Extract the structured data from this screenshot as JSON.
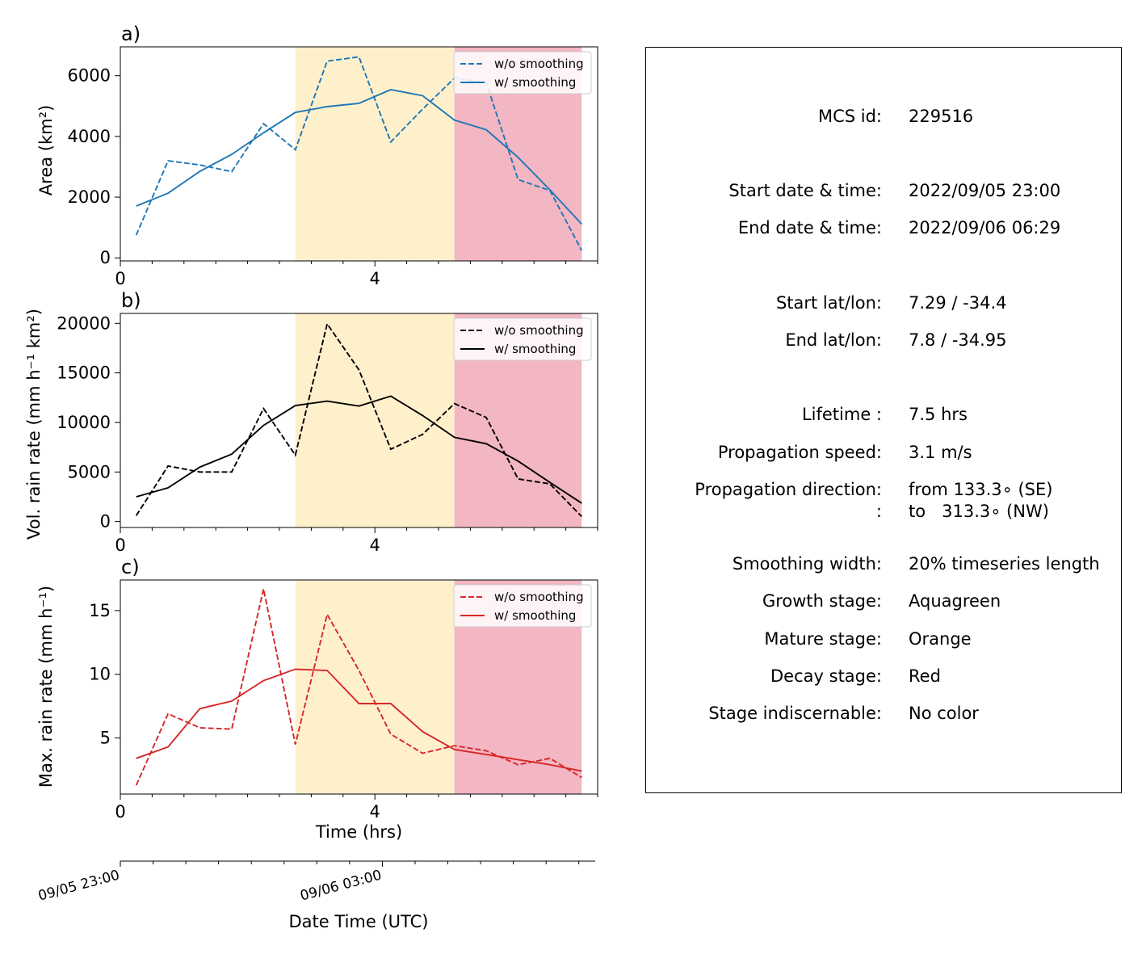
{
  "chart_data": [
    {
      "type": "line",
      "panel_label": "a)",
      "ylabel": "Area  (km²)",
      "xlim": [
        0,
        7.5
      ],
      "ylim": [
        -100,
        6950
      ],
      "x_ticks": [
        0,
        4
      ],
      "y_ticks": [
        0,
        2000,
        4000,
        6000
      ],
      "color": "#1f77b4",
      "series": [
        {
          "name": "w/o smoothing",
          "style": "dashed",
          "x": [
            0.25,
            0.75,
            1.25,
            1.75,
            2.25,
            2.75,
            3.25,
            3.75,
            4.25,
            4.75,
            5.25,
            5.75,
            6.25,
            6.75,
            7.25
          ],
          "y": [
            750,
            3200,
            3060,
            2840,
            4420,
            3560,
            6480,
            6620,
            3820,
            4900,
            5920,
            5770,
            2580,
            2220,
            240
          ]
        },
        {
          "name": "w/ smoothing",
          "style": "solid",
          "x": [
            0.25,
            0.75,
            1.25,
            1.75,
            2.25,
            2.75,
            3.25,
            3.75,
            4.25,
            4.75,
            5.25,
            5.75,
            6.25,
            6.75,
            7.25
          ],
          "y": [
            1710,
            2130,
            2850,
            3410,
            4120,
            4790,
            4980,
            5090,
            5540,
            5340,
            4540,
            4220,
            3310,
            2240,
            1110
          ]
        }
      ],
      "legend": "top-right"
    },
    {
      "type": "line",
      "panel_label": "b)",
      "ylabel": "Vol. rain rate (mm h⁻¹ km²)",
      "xlim": [
        0,
        7.5
      ],
      "ylim": [
        -600,
        21000
      ],
      "x_ticks": [
        0,
        4
      ],
      "y_ticks": [
        0,
        5000,
        10000,
        15000,
        20000
      ],
      "color": "#000000",
      "series": [
        {
          "name": "w/o smoothing",
          "style": "dashed",
          "x": [
            0.25,
            0.75,
            1.25,
            1.75,
            2.25,
            2.75,
            3.25,
            3.75,
            4.25,
            4.75,
            5.25,
            5.75,
            6.25,
            6.75,
            7.25
          ],
          "y": [
            600,
            5600,
            5000,
            5000,
            11400,
            6700,
            19950,
            15300,
            7300,
            8800,
            11900,
            10500,
            4300,
            3800,
            500
          ]
        },
        {
          "name": "w/ smoothing",
          "style": "solid",
          "x": [
            0.25,
            0.75,
            1.25,
            1.75,
            2.25,
            2.75,
            3.25,
            3.75,
            4.25,
            4.75,
            5.25,
            5.75,
            6.25,
            6.75,
            7.25
          ],
          "y": [
            2500,
            3400,
            5500,
            6800,
            9700,
            11700,
            12150,
            11650,
            12650,
            10700,
            8500,
            7850,
            6100,
            3950,
            1850
          ]
        }
      ],
      "legend": "top-right"
    },
    {
      "type": "line",
      "panel_label": "c)",
      "ylabel": "Max. rain rate  (mm h⁻¹)",
      "xlabel": "Time (hrs)",
      "xlim": [
        0,
        7.5
      ],
      "ylim": [
        0.6,
        17.4
      ],
      "x_ticks": [
        0,
        4
      ],
      "y_ticks": [
        5,
        10,
        15
      ],
      "color": "#d62728",
      "series": [
        {
          "name": "w/o smoothing",
          "style": "dashed",
          "x": [
            0.25,
            0.75,
            1.25,
            1.75,
            2.25,
            2.75,
            3.25,
            3.75,
            4.25,
            4.75,
            5.25,
            5.75,
            6.25,
            6.75,
            7.25
          ],
          "y": [
            1.3,
            6.9,
            5.8,
            5.7,
            16.7,
            4.5,
            14.7,
            10.3,
            5.3,
            3.8,
            4.4,
            4.0,
            2.9,
            3.4,
            1.9
          ]
        },
        {
          "name": "w/ smoothing",
          "style": "solid",
          "x": [
            0.25,
            0.75,
            1.25,
            1.75,
            2.25,
            2.75,
            3.25,
            3.75,
            4.25,
            4.75,
            5.25,
            5.75,
            6.25,
            6.75,
            7.25
          ],
          "y": [
            3.4,
            4.3,
            7.3,
            7.9,
            9.5,
            10.4,
            10.3,
            7.7,
            7.7,
            5.5,
            4.1,
            3.7,
            3.3,
            2.9,
            2.4
          ]
        }
      ],
      "legend": "top-right"
    }
  ],
  "stages": [
    {
      "name": "mature",
      "x_start": 2.75,
      "x_end": 5.25,
      "color": "#fff0cc"
    },
    {
      "name": "decay",
      "x_start": 5.25,
      "x_end": 7.25,
      "color": "#f3b6c3"
    }
  ],
  "date_axis": {
    "label": "Date Time (UTC)",
    "ticks": [
      {
        "x": 0,
        "label": "09/05 23:00"
      },
      {
        "x": 4,
        "label": "09/06 03:00"
      }
    ]
  },
  "info": {
    "rows": [
      {
        "label": "MCS id:",
        "value": "229516"
      },
      {
        "label": "Start date & time:",
        "value": "2022/09/05 23:00"
      },
      {
        "label": "End date & time:",
        "value": "2022/09/06 06:29"
      },
      {
        "label": "Start lat/lon:",
        "value": "7.29 / -34.4"
      },
      {
        "label": "End lat/lon:",
        "value": "7.8 / -34.95"
      },
      {
        "label": "Lifetime :",
        "value": "7.5 hrs"
      },
      {
        "label": "Propagation speed:",
        "value": "3.1 m/s"
      },
      {
        "label": "Propagation direction:",
        "value": "from 133.3∘ (SE)"
      },
      {
        "label": ":",
        "value": "to   313.3∘ (NW)"
      },
      {
        "label": "Smoothing width:",
        "value": "20% timeseries length"
      },
      {
        "label": "Growth stage:",
        "value": "Aquagreen"
      },
      {
        "label": "Mature stage:",
        "value": "Orange"
      },
      {
        "label": "Decay stage:",
        "value": "Red"
      },
      {
        "label": "Stage indiscernable:",
        "value": "No color"
      }
    ]
  }
}
